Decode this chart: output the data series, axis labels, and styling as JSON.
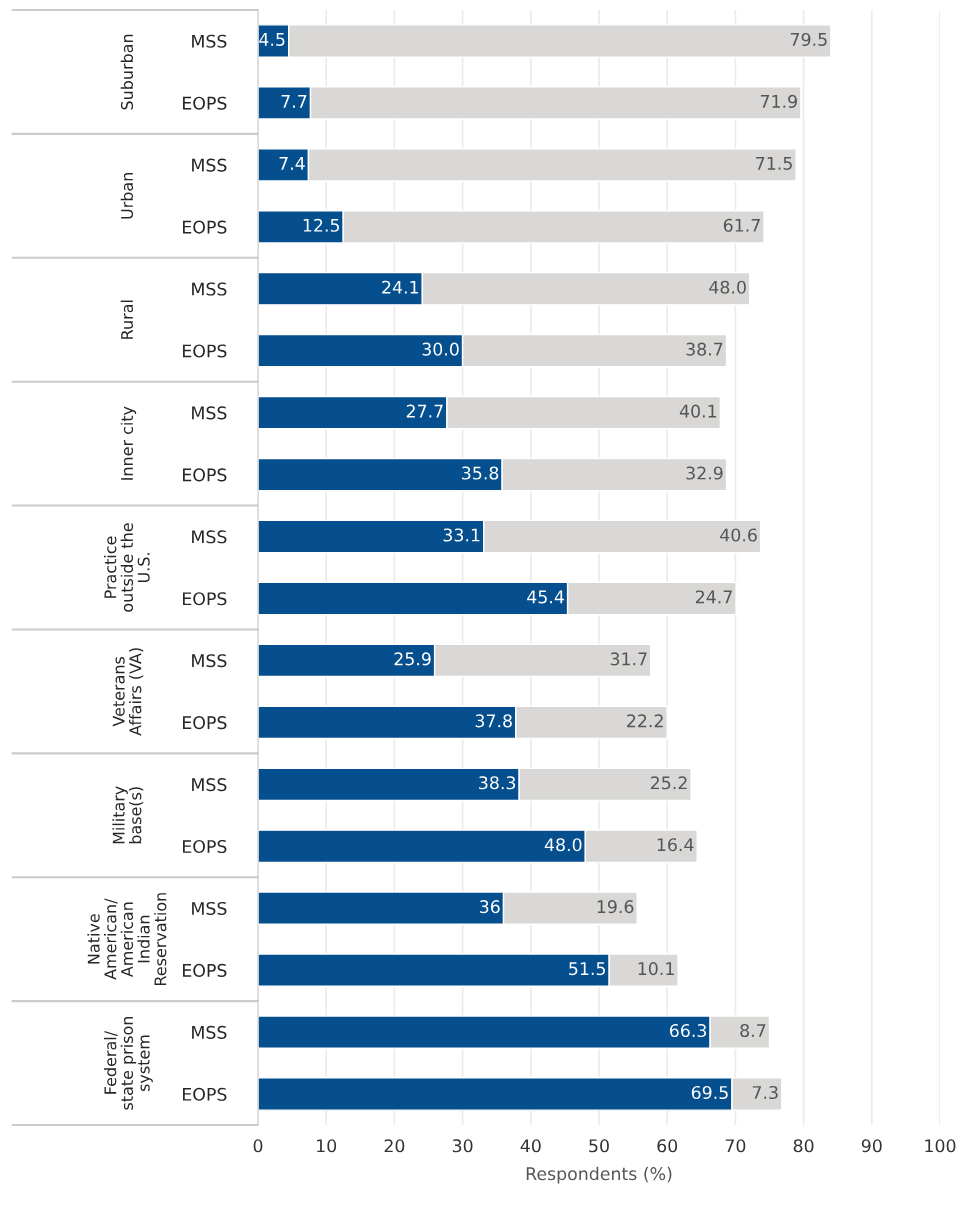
{
  "chart_data": {
    "type": "bar",
    "orientation": "horizontal",
    "stacked": true,
    "categories": [
      "MSS",
      "EOPS",
      "MSS",
      "EOPS",
      "MSS",
      "EOPS",
      "MSS",
      "EOPS",
      "MSS",
      "EOPS",
      "MSS",
      "EOPS",
      "MSS",
      "EOPS",
      "MSS",
      "EOPS",
      "MSS",
      "EOPS"
    ],
    "series": [
      {
        "color": "#064f8e",
        "values": [
          4.5,
          7.7,
          7.4,
          12.5,
          24.1,
          30.0,
          27.7,
          35.8,
          33.1,
          45.4,
          25.9,
          37.8,
          38.3,
          48.0,
          36,
          51.5,
          66.3,
          69.5
        ],
        "value_labels": [
          "4.5",
          "7.7",
          "7.4",
          "12.5",
          "24.1",
          "30.0",
          "27.7",
          "35.8",
          "33.1",
          "45.4",
          "25.9",
          "37.8",
          "38.3",
          "48.0",
          "36",
          "51.5",
          "66.3",
          "69.5"
        ]
      },
      {
        "color": "#d9d8d6",
        "values": [
          79.5,
          71.9,
          71.5,
          61.7,
          48.0,
          38.7,
          40.1,
          32.9,
          40.6,
          24.7,
          31.7,
          22.2,
          25.2,
          16.4,
          19.6,
          10.1,
          8.7,
          7.3
        ],
        "value_labels": [
          "79.5",
          "71.9",
          "71.5",
          "61.7",
          "48.0",
          "38.7",
          "40.1",
          "32.9",
          "40.6",
          "24.7",
          "31.7",
          "22.2",
          "25.2",
          "16.4",
          "19.6",
          "10.1",
          "8.7",
          "7.3"
        ]
      }
    ],
    "annotations": [
      "Suburban",
      "Urban",
      "Rural",
      "Inner city",
      "Practice\noutside the\nU.S.",
      "Veterans\nAffairs (VA)",
      "Military\nbase(s)",
      "Native\nAmerican/\nAmerican\nIndian\nReservation",
      "Federal/\nstate prison\nsystem"
    ],
    "xlabel": "Respondents (%)",
    "xlim": [
      0,
      100
    ],
    "xticks": [
      0,
      10,
      20,
      30,
      40,
      50,
      60,
      70,
      80,
      90,
      100
    ],
    "grid": "x",
    "legend": false
  }
}
